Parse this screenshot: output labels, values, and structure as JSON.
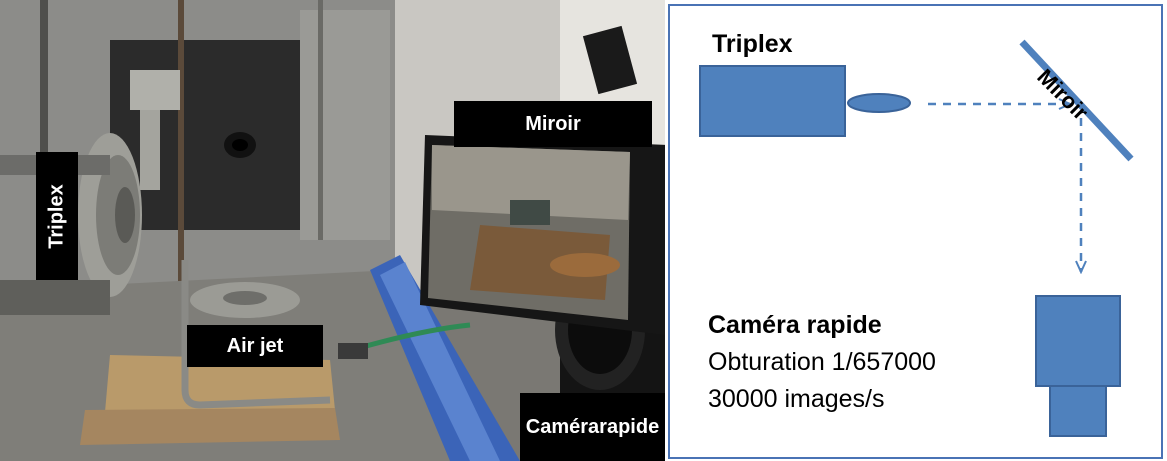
{
  "photo": {
    "labels": {
      "triplex": "Triplex",
      "miroir": "Miroir",
      "air_jet": "Air jet",
      "camera_line1": "Caméra",
      "camera_line2": "rapide"
    }
  },
  "diagram": {
    "triplex_title": "Triplex",
    "miroir_label": "Miroir",
    "camera_title": "Caméra rapide",
    "camera_shutter": "Obturation 1/657000",
    "camera_rate": "30000 images/s",
    "colors": {
      "shape_fill": "#4f81bd",
      "shape_stroke": "#3a6399",
      "arrow": "#4f81bd",
      "border": "#4a73b5"
    }
  }
}
